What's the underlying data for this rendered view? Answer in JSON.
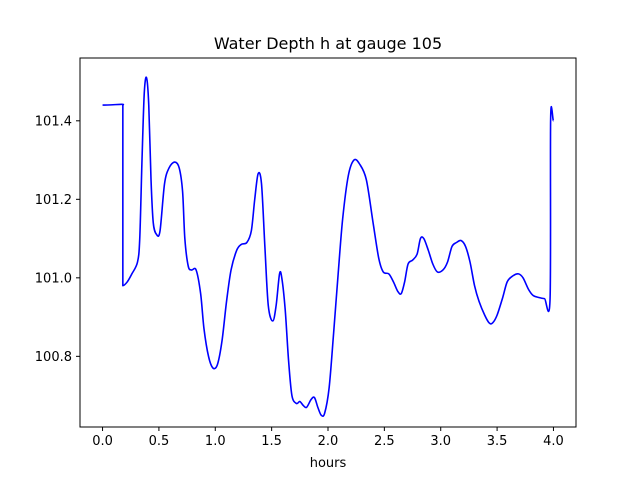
{
  "chart_data": {
    "type": "line",
    "title": "Water Depth h at gauge 105",
    "xlabel": "hours",
    "ylabel": "",
    "xlim": [
      -0.2,
      4.2
    ],
    "ylim": [
      100.62,
      101.56
    ],
    "xticks": [
      0.0,
      0.5,
      1.0,
      1.5,
      2.0,
      2.5,
      3.0,
      3.5,
      4.0
    ],
    "xtick_labels": [
      "0.0",
      "0.5",
      "1.0",
      "1.5",
      "2.0",
      "2.5",
      "3.0",
      "3.5",
      "4.0"
    ],
    "yticks": [
      100.8,
      101.0,
      101.2,
      101.4
    ],
    "ytick_labels": [
      "100.8",
      "101.0",
      "101.2",
      "101.4"
    ],
    "grid": false,
    "legend": "none",
    "series": [
      {
        "color": "#0000ff",
        "points": [
          [
            0.0,
            101.44
          ],
          [
            0.17,
            101.442
          ],
          [
            0.18,
            101.44
          ],
          [
            0.18,
            100.98
          ],
          [
            0.22,
            100.99
          ],
          [
            0.26,
            101.01
          ],
          [
            0.31,
            101.04
          ],
          [
            0.33,
            101.1
          ],
          [
            0.35,
            101.3
          ],
          [
            0.37,
            101.47
          ],
          [
            0.39,
            101.51
          ],
          [
            0.41,
            101.44
          ],
          [
            0.43,
            101.25
          ],
          [
            0.45,
            101.14
          ],
          [
            0.48,
            101.11
          ],
          [
            0.51,
            101.12
          ],
          [
            0.55,
            101.24
          ],
          [
            0.59,
            101.28
          ],
          [
            0.64,
            101.295
          ],
          [
            0.68,
            101.28
          ],
          [
            0.71,
            101.22
          ],
          [
            0.73,
            101.1
          ],
          [
            0.76,
            101.03
          ],
          [
            0.79,
            101.02
          ],
          [
            0.83,
            101.02
          ],
          [
            0.87,
            100.96
          ],
          [
            0.9,
            100.87
          ],
          [
            0.94,
            100.8
          ],
          [
            0.98,
            100.77
          ],
          [
            1.02,
            100.78
          ],
          [
            1.06,
            100.84
          ],
          [
            1.1,
            100.94
          ],
          [
            1.14,
            101.02
          ],
          [
            1.19,
            101.07
          ],
          [
            1.23,
            101.085
          ],
          [
            1.28,
            101.09
          ],
          [
            1.32,
            101.12
          ],
          [
            1.35,
            101.2
          ],
          [
            1.38,
            101.265
          ],
          [
            1.41,
            101.24
          ],
          [
            1.44,
            101.08
          ],
          [
            1.47,
            100.93
          ],
          [
            1.51,
            100.89
          ],
          [
            1.54,
            100.93
          ],
          [
            1.57,
            101.01
          ],
          [
            1.59,
            101.0
          ],
          [
            1.62,
            100.92
          ],
          [
            1.65,
            100.79
          ],
          [
            1.68,
            100.7
          ],
          [
            1.72,
            100.68
          ],
          [
            1.75,
            100.685
          ],
          [
            1.78,
            100.675
          ],
          [
            1.81,
            100.67
          ],
          [
            1.85,
            100.69
          ],
          [
            1.88,
            100.695
          ],
          [
            1.91,
            100.67
          ],
          [
            1.94,
            100.65
          ],
          [
            1.97,
            100.655
          ],
          [
            2.01,
            100.72
          ],
          [
            2.05,
            100.86
          ],
          [
            2.09,
            101.01
          ],
          [
            2.13,
            101.15
          ],
          [
            2.18,
            101.26
          ],
          [
            2.23,
            101.3
          ],
          [
            2.28,
            101.29
          ],
          [
            2.34,
            101.25
          ],
          [
            2.4,
            101.14
          ],
          [
            2.45,
            101.05
          ],
          [
            2.49,
            101.015
          ],
          [
            2.54,
            101.01
          ],
          [
            2.58,
            100.99
          ],
          [
            2.62,
            100.965
          ],
          [
            2.65,
            100.96
          ],
          [
            2.68,
            100.99
          ],
          [
            2.71,
            101.035
          ],
          [
            2.75,
            101.045
          ],
          [
            2.79,
            101.06
          ],
          [
            2.82,
            101.1
          ],
          [
            2.85,
            101.1
          ],
          [
            2.89,
            101.07
          ],
          [
            2.93,
            101.035
          ],
          [
            2.97,
            101.015
          ],
          [
            3.02,
            101.02
          ],
          [
            3.06,
            101.04
          ],
          [
            3.1,
            101.08
          ],
          [
            3.14,
            101.09
          ],
          [
            3.18,
            101.095
          ],
          [
            3.22,
            101.08
          ],
          [
            3.26,
            101.04
          ],
          [
            3.3,
            100.98
          ],
          [
            3.34,
            100.94
          ],
          [
            3.39,
            100.905
          ],
          [
            3.43,
            100.885
          ],
          [
            3.46,
            100.885
          ],
          [
            3.5,
            100.905
          ],
          [
            3.55,
            100.95
          ],
          [
            3.59,
            100.99
          ],
          [
            3.64,
            101.005
          ],
          [
            3.69,
            101.01
          ],
          [
            3.73,
            101.0
          ],
          [
            3.78,
            100.97
          ],
          [
            3.82,
            100.955
          ],
          [
            3.87,
            100.95
          ],
          [
            3.92,
            100.947
          ],
          [
            3.97,
            100.947
          ],
          [
            3.975,
            101.405
          ],
          [
            4.0,
            101.4
          ]
        ]
      }
    ]
  }
}
